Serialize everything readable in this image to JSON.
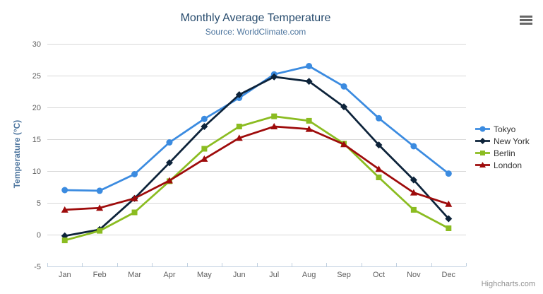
{
  "chart_data": {
    "type": "line",
    "title": "Monthly Average Temperature",
    "subtitle": "Source: WorldClimate.com",
    "xlabel": "",
    "ylabel": "Temperature (°C)",
    "ylim": [
      -5,
      30
    ],
    "ytick_interval": 5,
    "grid": true,
    "legend_position": "right",
    "categories": [
      "Jan",
      "Feb",
      "Mar",
      "Apr",
      "May",
      "Jun",
      "Jul",
      "Aug",
      "Sep",
      "Oct",
      "Nov",
      "Dec"
    ],
    "series": [
      {
        "name": "Tokyo",
        "marker": "circle",
        "color": "#3b8be0",
        "values": [
          7.0,
          6.9,
          9.5,
          14.5,
          18.2,
          21.5,
          25.2,
          26.5,
          23.3,
          18.3,
          13.9,
          9.6
        ]
      },
      {
        "name": "New York",
        "marker": "diamond",
        "color": "#0d233a",
        "values": [
          -0.2,
          0.8,
          5.7,
          11.3,
          17.0,
          22.0,
          24.8,
          24.1,
          20.1,
          14.1,
          8.6,
          2.5
        ]
      },
      {
        "name": "Berlin",
        "marker": "square",
        "color": "#8bbc21",
        "values": [
          -0.9,
          0.6,
          3.5,
          8.4,
          13.5,
          17.0,
          18.6,
          17.9,
          14.3,
          9.0,
          3.9,
          1.0
        ]
      },
      {
        "name": "London",
        "marker": "triangle",
        "color": "#9e0b0b",
        "values": [
          3.9,
          4.2,
          5.7,
          8.5,
          11.9,
          15.2,
          17.0,
          16.6,
          14.2,
          10.3,
          6.6,
          4.8
        ]
      }
    ],
    "colors": {
      "grid": "#d8d8d8",
      "axis_line": "#c0d0e0",
      "axis_label": "#606060",
      "title": "#274b6d",
      "subtitle": "#4d759e",
      "y_axis_title": "#4d759e",
      "legend_text": "#333333",
      "credits": "#909090",
      "burger": "#666666",
      "background": "#ffffff"
    }
  },
  "credits": {
    "label": "Highcharts.com"
  }
}
